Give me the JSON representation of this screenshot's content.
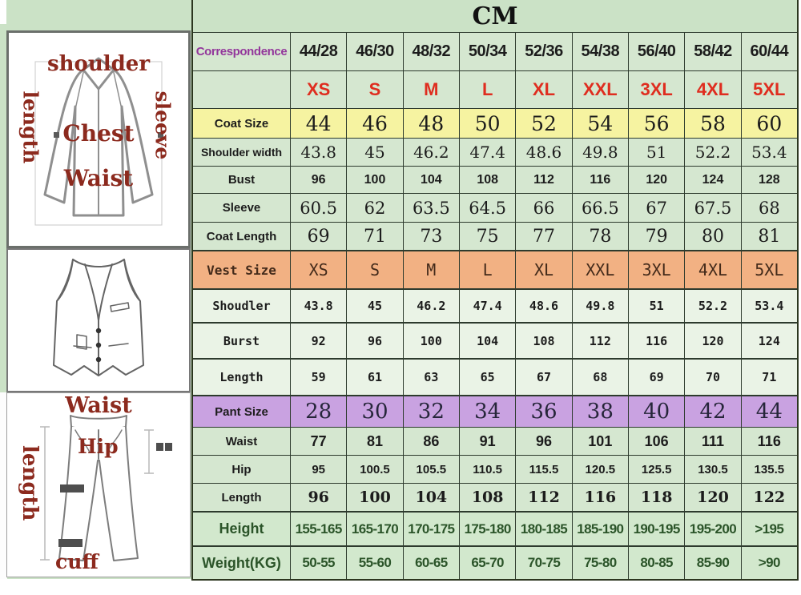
{
  "page": {
    "unit_title": "CM"
  },
  "colors": {
    "background_green": "#cbe2c6",
    "cell_green": "#d5e7d0",
    "vest_row_green": "#eaf3e6",
    "coat_size_yellow": "#f6f3a1",
    "vest_size_orange": "#f2b183",
    "pant_size_purple": "#c9a2e1",
    "letter_size_red": "#df2d1f",
    "correspondence_purple": "#93379b",
    "sketch_label_red": "#8c2a1e",
    "height_weight_green": "#2b5429"
  },
  "diagrams": {
    "jacket": {
      "top_label": "shoulder",
      "left_label": "length",
      "right_label": "sleeve",
      "chest_label": "Chest",
      "waist_label": "Waist"
    },
    "pants": {
      "top_label": "Waist",
      "left_label": "length",
      "hip_label": "Hip",
      "cuff_label": "cuff"
    }
  },
  "chart_data": {
    "type": "table",
    "title": "CM",
    "header_column_label": "Correspondence",
    "columns": [
      "44/28",
      "46/30",
      "48/32",
      "50/34",
      "52/36",
      "54/38",
      "56/40",
      "58/42",
      "60/44"
    ],
    "rows": [
      {
        "kind": "letter-sizes",
        "label": "",
        "values": [
          "XS",
          "S",
          "M",
          "L",
          "XL",
          "XXL",
          "3XL",
          "4XL",
          "5XL"
        ]
      },
      {
        "kind": "coat-size",
        "label": "Coat Size",
        "values": [
          "44",
          "46",
          "48",
          "50",
          "52",
          "54",
          "56",
          "58",
          "60"
        ]
      },
      {
        "kind": "shoulder-width",
        "label": "Shoulder width",
        "values": [
          "43.8",
          "45",
          "46.2",
          "47.4",
          "48.6",
          "49.8",
          "51",
          "52.2",
          "53.4"
        ]
      },
      {
        "kind": "bust",
        "label": "Bust",
        "values": [
          "96",
          "100",
          "104",
          "108",
          "112",
          "116",
          "120",
          "124",
          "128"
        ]
      },
      {
        "kind": "sleeve",
        "label": "Sleeve",
        "values": [
          "60.5",
          "62",
          "63.5",
          "64.5",
          "66",
          "66.5",
          "67",
          "67.5",
          "68"
        ]
      },
      {
        "kind": "coat-length",
        "label": "Coat Length",
        "values": [
          "69",
          "71",
          "73",
          "75",
          "77",
          "78",
          "79",
          "80",
          "81"
        ]
      },
      {
        "kind": "vest-size",
        "label": "Vest Size",
        "values": [
          "XS",
          "S",
          "M",
          "L",
          "XL",
          "XXL",
          "3XL",
          "4XL",
          "5XL"
        ]
      },
      {
        "kind": "vest-shoulder",
        "label": "Shoudler",
        "values": [
          "43.8",
          "45",
          "46.2",
          "47.4",
          "48.6",
          "49.8",
          "51",
          "52.2",
          "53.4"
        ]
      },
      {
        "kind": "vest-bust",
        "label": "Burst",
        "values": [
          "92",
          "96",
          "100",
          "104",
          "108",
          "112",
          "116",
          "120",
          "124"
        ]
      },
      {
        "kind": "vest-length",
        "label": "Length",
        "values": [
          "59",
          "61",
          "63",
          "65",
          "67",
          "68",
          "69",
          "70",
          "71"
        ]
      },
      {
        "kind": "pant-size",
        "label": "Pant Size",
        "values": [
          "28",
          "30",
          "32",
          "34",
          "36",
          "38",
          "40",
          "42",
          "44"
        ]
      },
      {
        "kind": "waist",
        "label": "Waist",
        "values": [
          "77",
          "81",
          "86",
          "91",
          "96",
          "101",
          "106",
          "111",
          "116"
        ]
      },
      {
        "kind": "hip",
        "label": "Hip",
        "values": [
          "95",
          "100.5",
          "105.5",
          "110.5",
          "115.5",
          "120.5",
          "125.5",
          "130.5",
          "135.5"
        ]
      },
      {
        "kind": "pant-length",
        "label": "Length",
        "values": [
          "96",
          "100",
          "104",
          "108",
          "112",
          "116",
          "118",
          "120",
          "122"
        ]
      },
      {
        "kind": "height",
        "label": "Height",
        "values": [
          "155-165",
          "165-170",
          "170-175",
          "175-180",
          "180-185",
          "185-190",
          "190-195",
          "195-200",
          ">195"
        ]
      },
      {
        "kind": "weight",
        "label": "Weight(KG)",
        "values": [
          "50-55",
          "55-60",
          "60-65",
          "65-70",
          "70-75",
          "75-80",
          "80-85",
          "85-90",
          ">90"
        ]
      }
    ]
  }
}
